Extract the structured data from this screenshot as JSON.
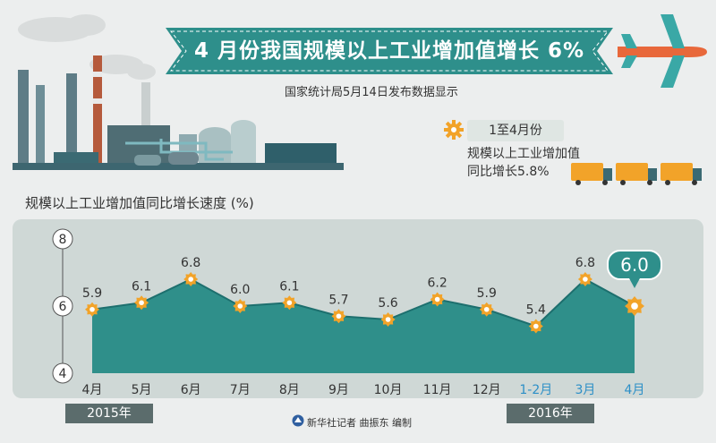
{
  "title": "4 月份我国规模以上工业增加值增长 6%",
  "subtitle": "国家统计局5月14日发布数据显示",
  "badge": "1至4月份",
  "stat_line1": "规模以上工业增加值",
  "stat_line2": "同比增长5.8%",
  "credit": "新华社记者 曲振东 编制",
  "year_2015": "2015年",
  "year_2016": "2016年",
  "colors": {
    "teal": "#2e8f8b",
    "teal_dark": "#1d6f6e",
    "area": "#2f8f8a",
    "band": "#cfd8d6",
    "gear": "#f2a329",
    "blue_label": "#2c8fc7",
    "year_bg": "#5b6c6c"
  },
  "chart_data": {
    "type": "area",
    "title": "规模以上工业增加值同比增长速度 (%)",
    "categories": [
      "4月",
      "5月",
      "6月",
      "7月",
      "8月",
      "9月",
      "10月",
      "11月",
      "12月",
      "1-2月",
      "3月",
      "4月"
    ],
    "values": [
      5.9,
      6.1,
      6.8,
      6.0,
      6.1,
      5.7,
      5.6,
      6.2,
      5.9,
      5.4,
      6.8,
      6.0
    ],
    "value_labels": [
      "5.9",
      "6.1",
      "6.8",
      "6.0",
      "6.1",
      "5.7",
      "5.6",
      "6.2",
      "5.9",
      "5.4",
      "6.8",
      "6.0"
    ],
    "highlight_categories": [
      9,
      10,
      11
    ],
    "yticks": [
      "8",
      "6",
      "4"
    ],
    "ylim": [
      4,
      8
    ]
  }
}
